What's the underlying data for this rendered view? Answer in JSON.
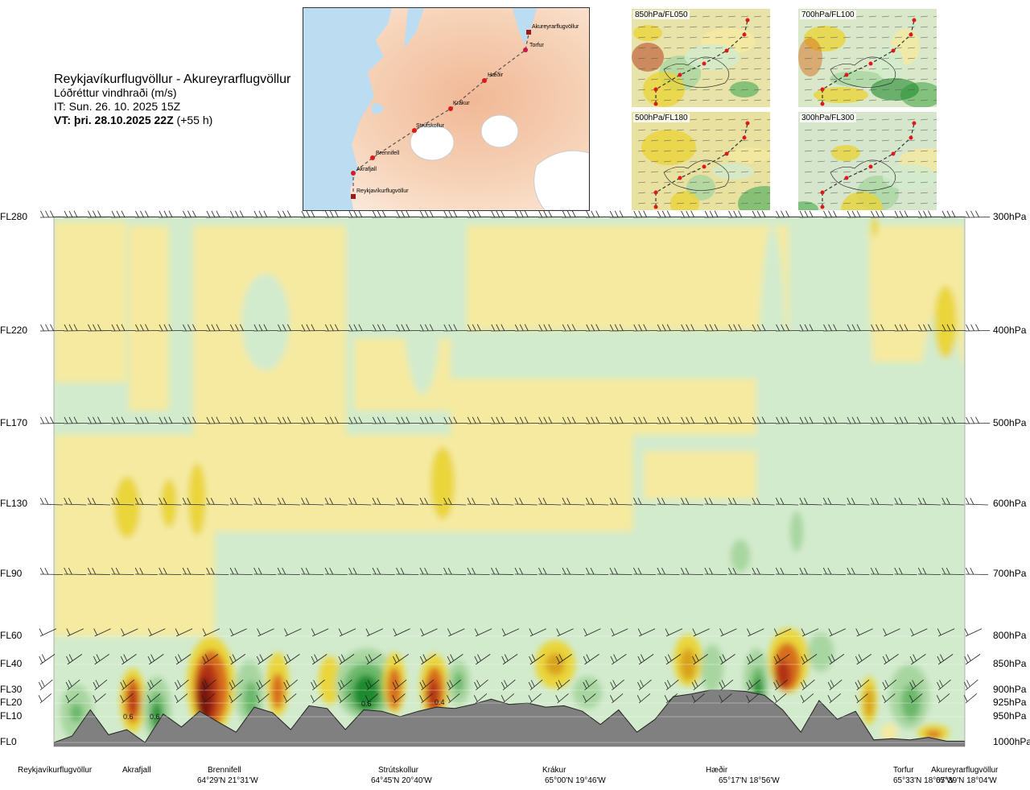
{
  "header": {
    "route": "Reykjavíkurflugvöllur - Akureyrarflugvöllur",
    "variable": "Lóðréttur vindhraði (m/s)",
    "issue_time": "IT: Sun. 26. 10. 2025 15Z",
    "valid_time_bold": "VT: þri. 28.10.2025 22Z",
    "valid_offset": " (+55 h)"
  },
  "route_map": {
    "waypoints": [
      {
        "name": "Akureyrarflugvöllur",
        "type": "airport"
      },
      {
        "name": "Torfur",
        "type": "point"
      },
      {
        "name": "Hæðir",
        "type": "point"
      },
      {
        "name": "Krákur",
        "type": "point"
      },
      {
        "name": "Strútskollur",
        "type": "point"
      },
      {
        "name": "Brennifell",
        "type": "point"
      },
      {
        "name": "Akrafjall",
        "type": "point"
      },
      {
        "name": "Reykjavíkurflugvöllur",
        "type": "airport"
      }
    ]
  },
  "level_maps": [
    {
      "label": "850hPa/FL050"
    },
    {
      "label": "700hPa/FL100"
    },
    {
      "label": "500hPa/FL180"
    },
    {
      "label": "300hPa/FL300"
    }
  ],
  "colors": {
    "pos_light": "#f5eaa0",
    "pos_mid": "#ead53a",
    "pos_strong": "#d8a21a",
    "pos_orange": "#d86d1e",
    "pos_red": "#b23214",
    "pos_dark": "#7a1408",
    "neg_light": "#d2ebcd",
    "neg_mid": "#a8d6a0",
    "neg_strong": "#6bb86a",
    "neg_dark": "#1f8a2e",
    "terrain": "#808080",
    "neutral": "#fafcee"
  },
  "chart_data": {
    "type": "cross-section",
    "title": "Lóðréttur vindhraði (m/s)",
    "y_levels": [
      {
        "fl": "FL280",
        "hpa": "300hPa"
      },
      {
        "fl": "FL220",
        "hpa": "400hPa"
      },
      {
        "fl": "FL170",
        "hpa": "500hPa"
      },
      {
        "fl": "FL130",
        "hpa": "600hPa"
      },
      {
        "fl": "FL90",
        "hpa": "700hPa"
      },
      {
        "fl": "FL60",
        "hpa": "800hPa"
      },
      {
        "fl": "FL40",
        "hpa": "850hPa"
      },
      {
        "fl": "FL30",
        "hpa": "900hPa"
      },
      {
        "fl": "FL20",
        "hpa": "925hPa"
      },
      {
        "fl": "FL10",
        "hpa": "950hPa"
      },
      {
        "fl": "FL0",
        "hpa": "1000hPa"
      }
    ],
    "x_stations": [
      {
        "name": "Reykjavíkurflugvöllur",
        "coord": ""
      },
      {
        "name": "Akrafjall",
        "coord": ""
      },
      {
        "name": "Brennifell",
        "coord": "64°29'N 21°31'W"
      },
      {
        "name": "Strútskollur",
        "coord": "64°45'N 20°40'W"
      },
      {
        "name": "Krákur",
        "coord": "65°00'N 19°46'W"
      },
      {
        "name": "Hæðir",
        "coord": "65°17'N 18°56'W"
      },
      {
        "name": "Torfur",
        "coord": "65°33'N 18°07'W"
      },
      {
        "name": "Akureyrarflugvöllur",
        "coord": "65°39'N 18°04'W"
      }
    ],
    "contour_labels": [
      "0.6",
      "0.6",
      "0.6",
      "0.4"
    ],
    "terrain_heights_ft": [
      0,
      250,
      1500,
      300,
      500,
      0,
      1200,
      600,
      1400,
      800,
      400,
      1700,
      1300,
      500,
      1800,
      1600,
      500,
      1500,
      1400,
      1000,
      1400,
      1700,
      1600,
      1900,
      2300,
      1900,
      2000,
      1700,
      1800,
      1400,
      700,
      1500,
      400,
      900,
      2500,
      2700,
      3000,
      3000,
      2900,
      2600,
      1500,
      400,
      2200,
      900,
      1400,
      100,
      150,
      100,
      200,
      50,
      50
    ]
  }
}
